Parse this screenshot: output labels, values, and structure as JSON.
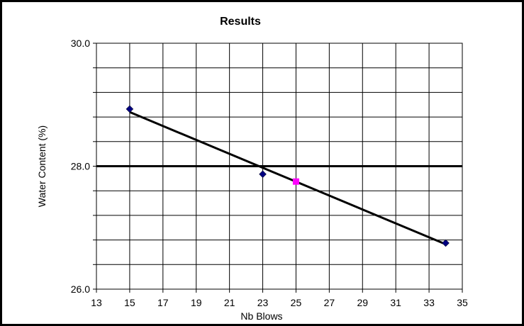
{
  "chart_data": {
    "type": "scatter",
    "title": "Results",
    "xlabel": "Nb Blows",
    "ylabel": "Water Content (%)",
    "xlim": [
      13,
      35
    ],
    "ylim": [
      26.0,
      30.0
    ],
    "x_ticks": [
      13,
      15,
      17,
      19,
      21,
      23,
      25,
      27,
      29,
      31,
      33,
      35
    ],
    "x_tick_labels": [
      "13",
      "15",
      "17",
      "19",
      "21",
      "23",
      "25",
      "27",
      "29",
      "31",
      "33",
      "35"
    ],
    "y_ticks": [
      26.0,
      26.4,
      26.8,
      27.2,
      27.6,
      28.0,
      28.4,
      28.8,
      29.2,
      29.6,
      30.0
    ],
    "y_tick_labels": [
      "26.0",
      "28.0",
      "30.0"
    ],
    "y_labeled_ticks": [
      26.0,
      28.0,
      30.0
    ],
    "grid": true,
    "legend": "none",
    "series": [
      {
        "marker": "diamond",
        "color": "#000080",
        "points": [
          {
            "x": 15,
            "y": 28.93
          },
          {
            "x": 23,
            "y": 27.87
          },
          {
            "x": 34,
            "y": 26.75
          }
        ]
      },
      {
        "marker": "square",
        "color": "#ff00ff",
        "points": [
          {
            "x": 25,
            "y": 27.75
          }
        ]
      }
    ],
    "trendline": {
      "color": "#000000",
      "points": [
        {
          "x": 15,
          "y": 28.88
        },
        {
          "x": 34,
          "y": 26.73
        }
      ]
    },
    "reference_line": {
      "y": 28.0,
      "color": "#000000"
    }
  }
}
